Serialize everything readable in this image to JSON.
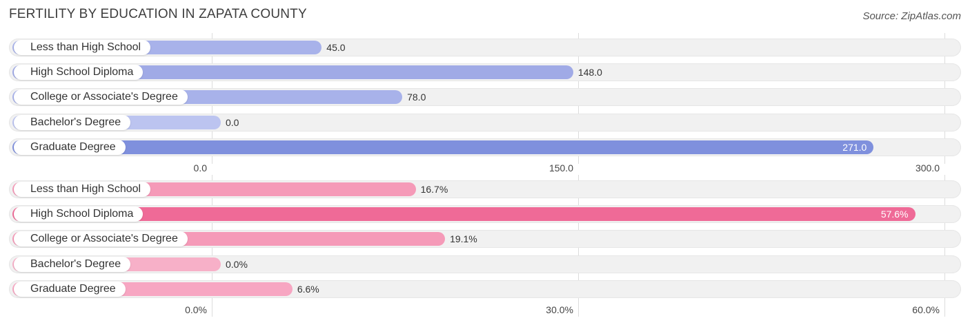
{
  "title": "FERTILITY BY EDUCATION IN ZAPATA COUNTY",
  "source": "Source: ZipAtlas.com",
  "chart_data": [
    {
      "type": "bar",
      "orientation": "horizontal",
      "categories": [
        "Less than High School",
        "High School Diploma",
        "College or Associate's Degree",
        "Bachelor's Degree",
        "Graduate Degree"
      ],
      "values": [
        45.0,
        148.0,
        78.0,
        0.0,
        271.0
      ],
      "value_labels": [
        "45.0",
        "148.0",
        "78.0",
        "0.0",
        "271.0"
      ],
      "xlim": [
        0,
        300
      ],
      "ticks": [
        0,
        150,
        300
      ],
      "tick_labels": [
        "0.0",
        "150.0",
        "300.0"
      ],
      "colors": [
        "#a8b2ea",
        "#a0aae6",
        "#a8b2ea",
        "#bcc4f0",
        "#7f90dd"
      ],
      "grid": true
    },
    {
      "type": "bar",
      "orientation": "horizontal",
      "categories": [
        "Less than High School",
        "High School Diploma",
        "College or Associate's Degree",
        "Bachelor's Degree",
        "Graduate Degree"
      ],
      "values": [
        16.7,
        57.6,
        19.1,
        0.0,
        6.6
      ],
      "value_labels": [
        "16.7%",
        "57.6%",
        "19.1%",
        "0.0%",
        "6.6%"
      ],
      "xlim": [
        0,
        60
      ],
      "ticks": [
        0,
        30,
        60
      ],
      "tick_labels": [
        "0.0%",
        "30.0%",
        "60.0%"
      ],
      "colors": [
        "#f59ab8",
        "#ef6a97",
        "#f59ab8",
        "#f7b0c8",
        "#f7a6c2"
      ],
      "grid": true
    }
  ]
}
